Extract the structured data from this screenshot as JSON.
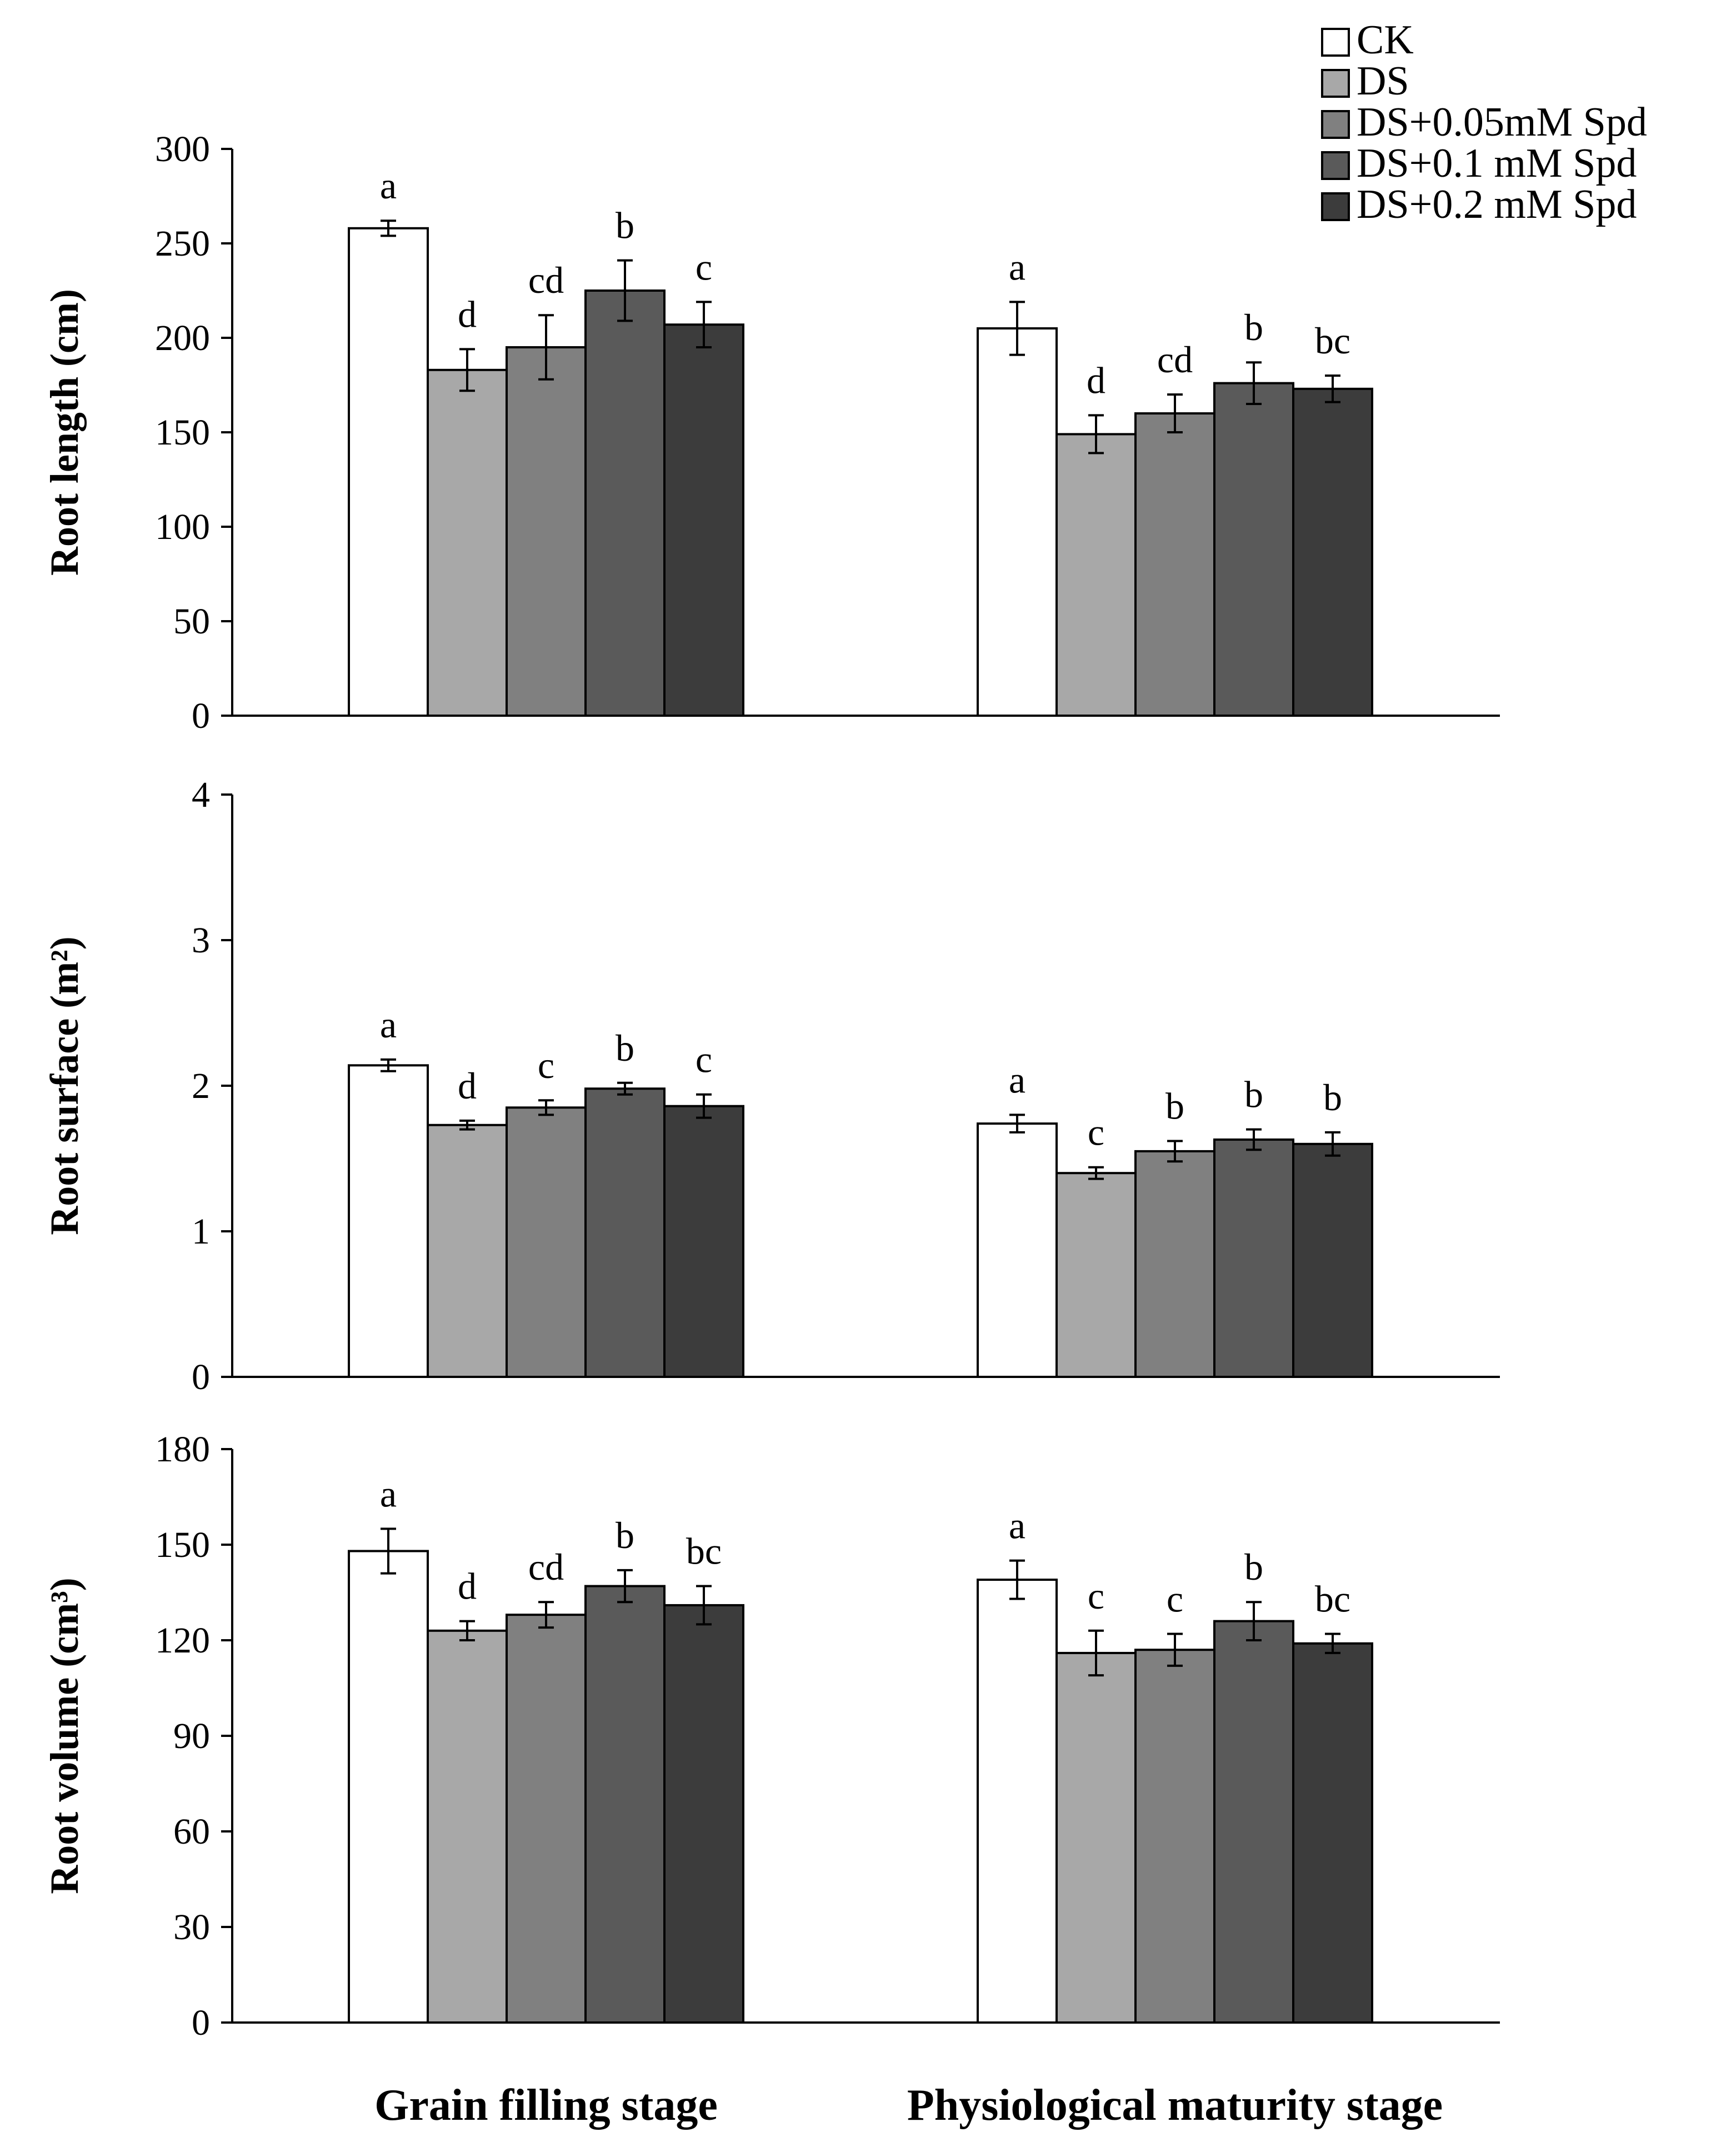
{
  "chart_data": [
    {
      "type": "bar",
      "id": "root-length",
      "ylabel": "Root length (cm)",
      "ylim": [
        0,
        300
      ],
      "yticks": [
        0,
        50,
        100,
        150,
        200,
        250,
        300
      ],
      "categories": [
        "Grain filling stage",
        "Physiological maturity stage"
      ],
      "series": [
        {
          "name": "CK",
          "values": [
            258,
            205
          ],
          "errors": [
            4,
            14
          ],
          "letters": [
            "a",
            "a"
          ]
        },
        {
          "name": "DS",
          "values": [
            183,
            149
          ],
          "errors": [
            11,
            10
          ],
          "letters": [
            "d",
            "d"
          ]
        },
        {
          "name": "DS+0.05mM Spd",
          "values": [
            195,
            160
          ],
          "errors": [
            17,
            10
          ],
          "letters": [
            "cd",
            "cd"
          ]
        },
        {
          "name": "DS+0.1 mM Spd",
          "values": [
            225,
            176
          ],
          "errors": [
            16,
            11
          ],
          "letters": [
            "b",
            "b"
          ]
        },
        {
          "name": "DS+0.2 mM Spd",
          "values": [
            207,
            173
          ],
          "errors": [
            12,
            7
          ],
          "letters": [
            "c",
            "bc"
          ]
        }
      ]
    },
    {
      "type": "bar",
      "id": "root-surface",
      "ylabel": "Root surface (m²)",
      "ylim": [
        0,
        4
      ],
      "yticks": [
        0,
        1,
        2,
        3,
        4
      ],
      "categories": [
        "Grain filling stage",
        "Physiological maturity stage"
      ],
      "series": [
        {
          "name": "CK",
          "values": [
            2.14,
            1.74
          ],
          "errors": [
            0.04,
            0.06
          ],
          "letters": [
            "a",
            "a"
          ]
        },
        {
          "name": "DS",
          "values": [
            1.73,
            1.4
          ],
          "errors": [
            0.03,
            0.04
          ],
          "letters": [
            "d",
            "c"
          ]
        },
        {
          "name": "DS+0.05mM Spd",
          "values": [
            1.85,
            1.55
          ],
          "errors": [
            0.05,
            0.07
          ],
          "letters": [
            "c",
            "b"
          ]
        },
        {
          "name": "DS+0.1 mM Spd",
          "values": [
            1.98,
            1.63
          ],
          "errors": [
            0.04,
            0.07
          ],
          "letters": [
            "b",
            "b"
          ]
        },
        {
          "name": "DS+0.2 mM Spd",
          "values": [
            1.86,
            1.6
          ],
          "errors": [
            0.08,
            0.08
          ],
          "letters": [
            "c",
            "b"
          ]
        }
      ]
    },
    {
      "type": "bar",
      "id": "root-volume",
      "ylabel": "Root volume (cm³)",
      "ylim": [
        0,
        180
      ],
      "yticks": [
        0,
        30,
        60,
        90,
        120,
        150,
        180
      ],
      "categories": [
        "Grain filling stage",
        "Physiological maturity stage"
      ],
      "series": [
        {
          "name": "CK",
          "values": [
            148,
            139
          ],
          "errors": [
            7,
            6
          ],
          "letters": [
            "a",
            "a"
          ]
        },
        {
          "name": "DS",
          "values": [
            123,
            116
          ],
          "errors": [
            3,
            7
          ],
          "letters": [
            "d",
            "c"
          ]
        },
        {
          "name": "DS+0.05mM Spd",
          "values": [
            128,
            117
          ],
          "errors": [
            4,
            5
          ],
          "letters": [
            "cd",
            "c"
          ]
        },
        {
          "name": "DS+0.1 mM Spd",
          "values": [
            137,
            126
          ],
          "errors": [
            5,
            6
          ],
          "letters": [
            "b",
            "b"
          ]
        },
        {
          "name": "DS+0.2 mM Spd",
          "values": [
            131,
            119
          ],
          "errors": [
            6,
            3
          ],
          "letters": [
            "bc",
            "bc"
          ]
        }
      ]
    }
  ],
  "legend": {
    "position": "top-right",
    "items": [
      "CK",
      "DS",
      "DS+0.05mM Spd",
      "DS+0.1 mM Spd",
      "DS+0.2 mM Spd"
    ]
  },
  "colors": {
    "CK": "#ffffff",
    "DS": "#a8a8a8",
    "DS+0.05mM Spd": "#808080",
    "DS+0.1 mM Spd": "#5a5a5a",
    "DS+0.2 mM Spd": "#3c3c3c",
    "outline": "#000000"
  }
}
